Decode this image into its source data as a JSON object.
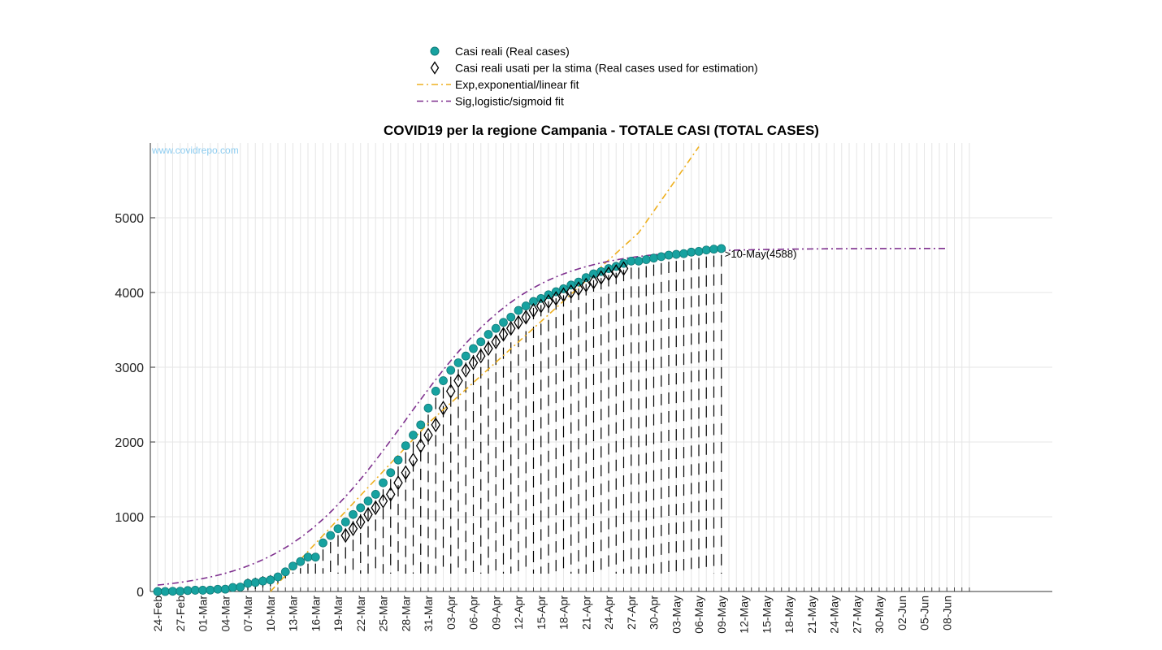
{
  "colors": {
    "real": "#17a2a0",
    "exp": "#eeb020",
    "sig": "#7e2f8e",
    "grid": "#e6e6e6"
  },
  "legend": [
    {
      "marker": "circle",
      "label": "Casi reali (Real cases)"
    },
    {
      "marker": "diamond",
      "label": "Casi reali usati per la stima (Real cases used for estimation)"
    },
    {
      "marker": "exp-line",
      "label": "Exp,exponential/linear fit"
    },
    {
      "marker": "sig-line",
      "label": "Sig,logistic/sigmoid fit"
    }
  ],
  "watermark": "www.covidrepo.com",
  "annotation": ">10-May(4588)",
  "chart_data": {
    "type": "line",
    "title": "COVID19 per la regione Campania - TOTALE CASI (TOTAL CASES)",
    "xlabel": "",
    "ylabel": "",
    "x_start": "24-Feb",
    "x_end": "11-Jun",
    "ylim": [
      0,
      6000
    ],
    "yticks": [
      0,
      1000,
      2000,
      3000,
      4000,
      5000
    ],
    "xticks": [
      "24-Feb",
      "27-Feb",
      "01-Mar",
      "04-Mar",
      "07-Mar",
      "10-Mar",
      "13-Mar",
      "16-Mar",
      "19-Mar",
      "22-Mar",
      "25-Mar",
      "28-Mar",
      "31-Mar",
      "03-Apr",
      "06-Apr",
      "09-Apr",
      "12-Apr",
      "15-Apr",
      "18-Apr",
      "21-Apr",
      "24-Apr",
      "27-Apr",
      "30-Apr",
      "03-May",
      "06-May",
      "09-May",
      "12-May",
      "15-May",
      "18-May",
      "21-May",
      "24-May",
      "27-May",
      "30-May",
      "02-Jun",
      "05-Jun",
      "08-Jun"
    ],
    "grid": true,
    "series": [
      {
        "name": "Casi reali (Real cases)",
        "start_date": "24-Feb",
        "values": [
          0,
          0,
          3,
          4,
          13,
          17,
          17,
          19,
          30,
          31,
          54,
          60,
          108,
          120,
          140,
          154,
          196,
          263,
          340,
          400,
          460,
          460,
          650,
          750,
          840,
          930,
          1030,
          1120,
          1210,
          1300,
          1454,
          1590,
          1759,
          1950,
          2092,
          2230,
          2453,
          2680,
          2820,
          2960,
          3060,
          3150,
          3250,
          3340,
          3440,
          3520,
          3600,
          3670,
          3760,
          3820,
          3880,
          3920,
          3970,
          4010,
          4050,
          4100,
          4140,
          4200,
          4250,
          4280,
          4320,
          4350,
          4390,
          4420,
          4420,
          4440,
          4460,
          4480,
          4500,
          4510,
          4520,
          4540,
          4550,
          4568,
          4580,
          4588
        ]
      },
      {
        "name": "Casi reali usati per la stima (Real cases used for estimation)",
        "start_date": "20-Mar",
        "values": [
          750,
          840,
          930,
          1030,
          1120,
          1210,
          1300,
          1454,
          1590,
          1759,
          1950,
          2092,
          2230,
          2453,
          2680,
          2820,
          2960,
          3060,
          3150,
          3250,
          3340,
          3440,
          3520,
          3600,
          3670,
          3760,
          3820,
          3880,
          3920,
          3970,
          4010,
          4050,
          4100,
          4140,
          4200,
          4250,
          4280,
          4320
        ]
      },
      {
        "name": "Exp,exponential/linear fit",
        "x": [
          "10-Mar",
          "31-Mar",
          "14-Apr",
          "28-Apr",
          "06-May"
        ],
        "y": [
          0,
          2250,
          3520,
          4800,
          5950
        ]
      },
      {
        "name": "Sig,logistic/sigmoid fit",
        "model": "logistic",
        "K": 4590,
        "r": 0.12,
        "t0_date": "28-Mar",
        "offset": 100,
        "from": "24-Feb",
        "to": "08-Jun"
      }
    ]
  }
}
